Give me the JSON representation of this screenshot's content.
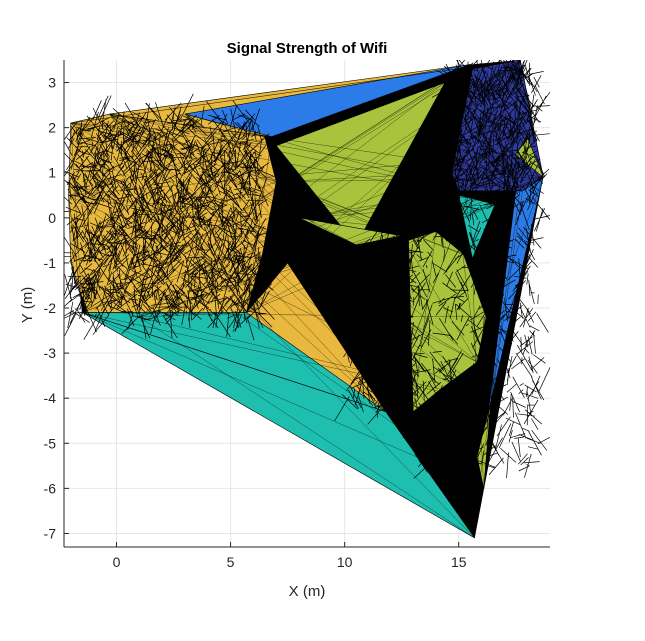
{
  "chart_data": {
    "type": "triangulated-surface",
    "title": "Signal Strength of Wifi",
    "xlabel": "X (m)",
    "ylabel": "Y (m)",
    "xlim": [
      -2.3,
      19.0
    ],
    "ylim": [
      -7.3,
      3.5
    ],
    "xticks": [
      0,
      5,
      10,
      15
    ],
    "yticks": [
      -7,
      -6,
      -5,
      -4,
      -3,
      -2,
      -1,
      0,
      1,
      2,
      3
    ],
    "grid": true,
    "colors": {
      "yellow": "#e8b93e",
      "green": "#a9c43c",
      "teal": "#1fbfb0",
      "blue": "#2b7be8",
      "navy": "#2e3a9c",
      "mesh": "#000000"
    },
    "regions": [
      {
        "color": "yellow",
        "points": [
          [
            -2.0,
            2.1
          ],
          [
            -0.3,
            2.3
          ],
          [
            3.8,
            2.2
          ],
          [
            6.5,
            1.8
          ],
          [
            7.0,
            0.8
          ],
          [
            6.4,
            -0.8
          ],
          [
            5.7,
            -2.1
          ],
          [
            1.0,
            -2.2
          ],
          [
            -1.3,
            -2.1
          ],
          [
            -2.0,
            -1.0
          ],
          [
            -2.1,
            0.5
          ]
        ]
      },
      {
        "color": "yellow",
        "points": [
          [
            -1.5,
            -2.1
          ],
          [
            5.7,
            -2.1
          ],
          [
            7.5,
            -1.0
          ],
          [
            11.8,
            -4.3
          ]
        ]
      },
      {
        "color": "yellow",
        "points": [
          [
            6.8,
            1.8
          ],
          [
            -0.3,
            2.3
          ],
          [
            15.5,
            3.4
          ]
        ]
      },
      {
        "color": "green",
        "points": [
          [
            7.0,
            1.6
          ],
          [
            14.4,
            3.0
          ],
          [
            10.5,
            -0.6
          ]
        ]
      },
      {
        "color": "green",
        "points": [
          [
            12.8,
            -0.5
          ],
          [
            14.0,
            -0.3
          ],
          [
            15.2,
            -0.8
          ],
          [
            16.2,
            -2.2
          ],
          [
            15.8,
            -3.2
          ],
          [
            14.2,
            -3.8
          ],
          [
            13.0,
            -4.3
          ]
        ]
      },
      {
        "color": "green",
        "points": [
          [
            8.0,
            0.0
          ],
          [
            10.5,
            -0.6
          ],
          [
            12.5,
            -0.4
          ]
        ]
      },
      {
        "color": "teal",
        "points": [
          [
            -1.5,
            -2.1
          ],
          [
            11.8,
            -4.3
          ],
          [
            15.7,
            -7.1
          ]
        ]
      },
      {
        "color": "teal",
        "points": [
          [
            5.7,
            -2.1
          ],
          [
            11.8,
            -4.3
          ],
          [
            -1.5,
            -2.1
          ]
        ]
      },
      {
        "color": "blue",
        "points": [
          [
            3.0,
            2.3
          ],
          [
            15.5,
            3.4
          ],
          [
            6.8,
            1.8
          ]
        ]
      },
      {
        "color": "blue",
        "points": [
          [
            17.5,
            0.6
          ],
          [
            18.7,
            0.9
          ],
          [
            16.4,
            -4.1
          ],
          [
            15.9,
            -5.9
          ]
        ]
      },
      {
        "color": "navy",
        "points": [
          [
            14.7,
            1.0
          ],
          [
            15.6,
            3.3
          ],
          [
            17.7,
            3.5
          ],
          [
            18.7,
            0.9
          ],
          [
            17.8,
            0.6
          ],
          [
            15.0,
            0.6
          ]
        ]
      },
      {
        "color": "green",
        "points": [
          [
            17.5,
            1.4
          ],
          [
            18.7,
            0.9
          ],
          [
            18.0,
            1.8
          ]
        ]
      },
      {
        "color": "teal",
        "points": [
          [
            15.0,
            0.5
          ],
          [
            16.6,
            0.3
          ],
          [
            15.6,
            -0.9
          ]
        ]
      },
      {
        "color": "green",
        "points": [
          [
            15.8,
            -5.3
          ],
          [
            16.4,
            -4.1
          ],
          [
            16.1,
            -6.0
          ]
        ]
      }
    ],
    "mesh_clusters": [
      {
        "x": [
          -2.0,
          6.3
        ],
        "y": [
          -2.2,
          2.2
        ],
        "count": 1600,
        "seed": 11
      },
      {
        "x": [
          14.6,
          18.4
        ],
        "y": [
          0.6,
          3.4
        ],
        "count": 600,
        "seed": 23
      },
      {
        "x": [
          12.8,
          18.5
        ],
        "y": [
          -5.5,
          0.6
        ],
        "count": 500,
        "seed": 37
      },
      {
        "x": [
          10.2,
          13.3
        ],
        "y": [
          -4.3,
          -0.5
        ],
        "count": 250,
        "seed": 41
      }
    ],
    "hull": [
      [
        -2.0,
        2.1
      ],
      [
        -0.3,
        2.3
      ],
      [
        15.5,
        3.4
      ],
      [
        17.7,
        3.5
      ],
      [
        18.7,
        0.9
      ],
      [
        15.7,
        -7.1
      ],
      [
        -1.5,
        -2.1
      ],
      [
        -2.1,
        0.5
      ]
    ]
  }
}
